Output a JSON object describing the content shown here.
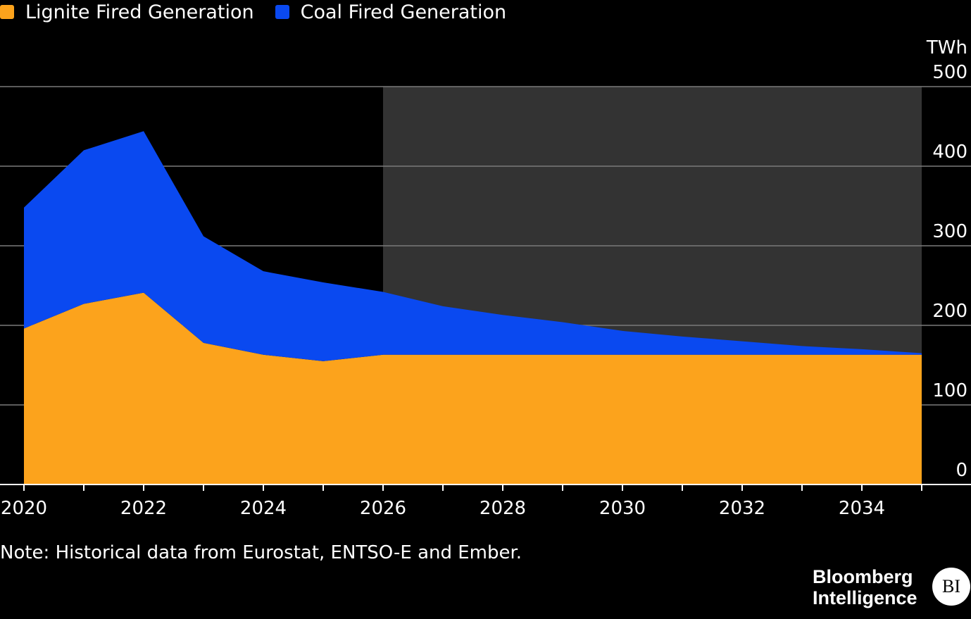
{
  "legend": {
    "items": [
      {
        "label": "Lignite Fired Generation",
        "color": "#fca31c"
      },
      {
        "label": "Coal Fired Generation",
        "color": "#0a49f0"
      }
    ]
  },
  "note": "Note: Historical data from Eurostat, ENTSO-E and Ember.",
  "brand": {
    "line1": "Bloomberg",
    "line2": "Intelligence",
    "badge": "BI"
  },
  "chart_data": {
    "type": "area",
    "stacked": true,
    "x": [
      2020,
      2021,
      2022,
      2023,
      2024,
      2025,
      2026,
      2027,
      2028,
      2029,
      2030,
      2031,
      2032,
      2033,
      2034,
      2035
    ],
    "series": [
      {
        "name": "Lignite Fired Generation",
        "color": "#fca31c",
        "values": [
          196,
          227,
          241,
          178,
          163,
          155,
          163,
          163,
          163,
          163,
          163,
          163,
          163,
          163,
          163,
          163
        ]
      },
      {
        "name": "Coal Fired Generation",
        "color": "#0a49f0",
        "values": [
          152,
          193,
          203,
          134,
          105,
          99,
          79,
          61,
          50,
          41,
          30,
          23,
          17,
          11,
          7,
          2
        ]
      }
    ],
    "ylabel": "TWh",
    "ylim": [
      0,
      500
    ],
    "yticks": [
      0,
      100,
      200,
      300,
      400,
      500
    ],
    "xlim": [
      2020,
      2035
    ],
    "xtick_labels": [
      2020,
      2022,
      2024,
      2026,
      2028,
      2030,
      2032,
      2034
    ],
    "forecast_region": [
      2026,
      2035
    ],
    "forecast_color": "#333333",
    "grid": true,
    "legend_position": "top-left",
    "y_axis_side": "right"
  }
}
